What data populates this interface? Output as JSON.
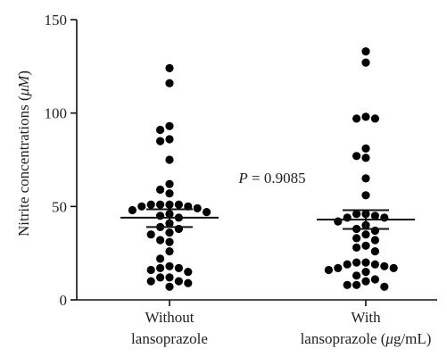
{
  "chart_data": {
    "type": "scatter",
    "ylabel_main": "Nitrite concentrations (",
    "ylabel_unit": "μM",
    "ylabel_close": ")",
    "ylim": [
      0,
      150
    ],
    "yticks": [
      0,
      50,
      100,
      150
    ],
    "ytick_labels": [
      "0",
      "50",
      "100",
      "150"
    ],
    "categories": [
      {
        "label_line1": "Without",
        "label_line2": "lansoprazole",
        "mean": 44,
        "sem_upper": 48.5,
        "sem_lower": 39,
        "values": [
          124,
          116,
          93,
          91,
          86,
          85,
          75,
          62,
          59,
          57,
          51,
          51,
          51,
          51,
          50,
          50,
          49,
          48,
          47,
          46,
          45,
          44,
          41,
          39,
          38,
          36,
          35,
          32,
          31,
          26,
          22,
          18,
          17,
          17,
          16,
          15,
          12,
          12,
          10,
          10,
          9,
          7
        ]
      },
      {
        "label_line1": "With",
        "label_line2_pre": "lansoprazole (",
        "label_line2_unit": "μ",
        "label_line2_post": "g/mL)",
        "mean": 43,
        "sem_upper": 48,
        "sem_lower": 38,
        "values": [
          133,
          127,
          98,
          97,
          97,
          81,
          77,
          76,
          65,
          56,
          46,
          46,
          45,
          44,
          44,
          42,
          40,
          38,
          37,
          35,
          33,
          32,
          29,
          28,
          26,
          20,
          20,
          19,
          19,
          18,
          17,
          17,
          16,
          15,
          13,
          11,
          10,
          8,
          8,
          7
        ]
      }
    ],
    "annotation": {
      "p_symbol": "P",
      "p_text": " = 0.9085"
    }
  }
}
